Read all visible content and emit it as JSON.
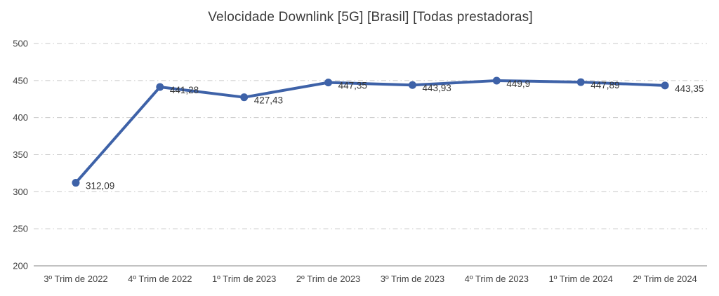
{
  "page": {
    "title": "Velocidade Downlink [5G] [Brasil] [Todas prestadoras]"
  },
  "chart_data": {
    "type": "line",
    "title": "Velocidade Downlink [5G] [Brasil] [Todas prestadoras]",
    "categories": [
      "3º Trim de 2022",
      "4º Trim de 2022",
      "1º Trim de 2023",
      "2º Trim de 2023",
      "3º Trim de 2023",
      "4º Trim de 2023",
      "1º Trim de 2024",
      "2º Trim de 2024"
    ],
    "values": [
      312.09,
      441.28,
      427.43,
      447.35,
      443.93,
      449.9,
      447.89,
      443.35
    ],
    "value_labels": [
      "312,09",
      "441,28",
      "427,43",
      "447,35",
      "443,93",
      "449,9",
      "447,89",
      "443,35"
    ],
    "xlabel": "",
    "ylabel": "",
    "ylim": [
      200,
      500
    ],
    "yticks": [
      200,
      250,
      300,
      350,
      400,
      450,
      500
    ],
    "grid": "horizontal-dash-dot",
    "legend": "none",
    "marker": "circle",
    "colors": {
      "line": "#3e62a8",
      "marker": "#3e62a8",
      "grid": "#c9c9c9",
      "axis": "#9e9e9e",
      "tick_text": "#424242",
      "label_text": "#363636",
      "title_text": "#3b3b3b",
      "background": "#ffffff"
    }
  }
}
